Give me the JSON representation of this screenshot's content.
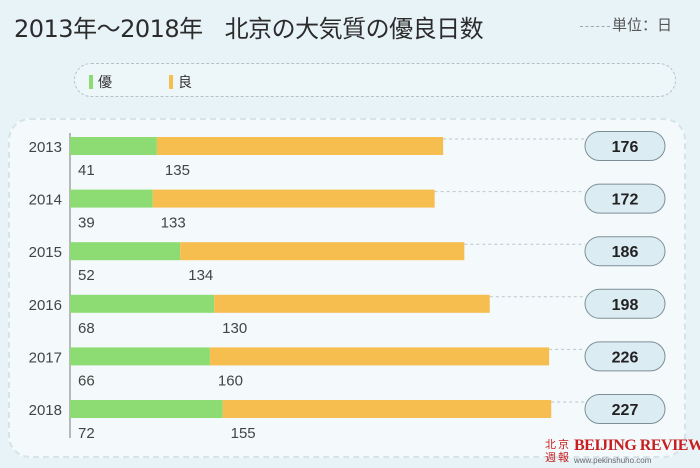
{
  "header": {
    "title_part1": "2013年～2018年",
    "title_part2": "北京の大気質の優良日数",
    "unit": "単位：日"
  },
  "legend": [
    {
      "label": "優",
      "color": "#8ddc73"
    },
    {
      "label": "良",
      "color": "#f6bd4f"
    }
  ],
  "chart_data": {
    "type": "bar",
    "orientation": "horizontal",
    "stacked": true,
    "categories": [
      "2013",
      "2014",
      "2015",
      "2016",
      "2017",
      "2018"
    ],
    "series": [
      {
        "name": "優",
        "color": "#8ddc73",
        "values": [
          41,
          39,
          52,
          68,
          66,
          72
        ]
      },
      {
        "name": "良",
        "color": "#f6bd4f",
        "values": [
          135,
          133,
          134,
          130,
          160,
          155
        ]
      }
    ],
    "totals": [
      176,
      172,
      186,
      198,
      226,
      227
    ],
    "title": "2013年～2018年　北京の大気質の優良日数",
    "unit": "単位：日",
    "legend_position": "top"
  },
  "brand": {
    "cn_chars": [
      "北",
      "京",
      "週",
      "報"
    ],
    "name": "BEIJING REVIEW",
    "url": "www.pekinshuho.com"
  }
}
